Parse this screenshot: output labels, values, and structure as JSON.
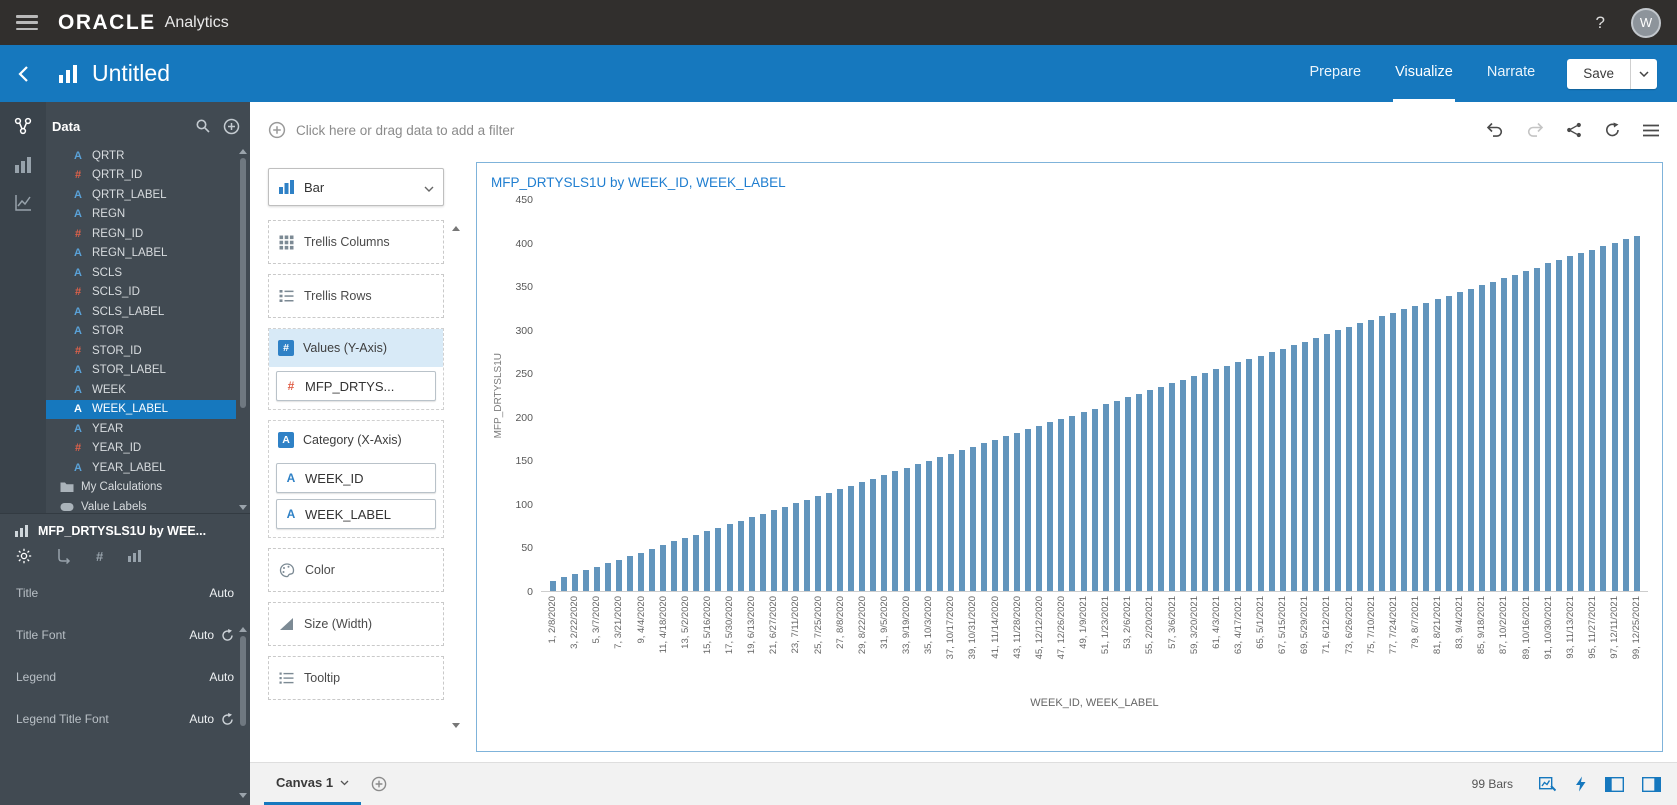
{
  "topbar": {
    "brand": "ORACLE",
    "product": "Analytics",
    "help_label": "?",
    "avatar_initial": "W"
  },
  "header": {
    "title": "Untitled",
    "nav": {
      "prepare": "Prepare",
      "visualize": "Visualize",
      "narrate": "Narrate"
    },
    "save_label": "Save"
  },
  "sidebar": {
    "panel_title": "Data",
    "fields": [
      {
        "label": "QRTR",
        "type": "attr"
      },
      {
        "label": "QRTR_ID",
        "type": "measure"
      },
      {
        "label": "QRTR_LABEL",
        "type": "attr"
      },
      {
        "label": "REGN",
        "type": "attr"
      },
      {
        "label": "REGN_ID",
        "type": "measure"
      },
      {
        "label": "REGN_LABEL",
        "type": "attr"
      },
      {
        "label": "SCLS",
        "type": "attr"
      },
      {
        "label": "SCLS_ID",
        "type": "measure"
      },
      {
        "label": "SCLS_LABEL",
        "type": "attr"
      },
      {
        "label": "STOR",
        "type": "attr"
      },
      {
        "label": "STOR_ID",
        "type": "measure"
      },
      {
        "label": "STOR_LABEL",
        "type": "attr"
      },
      {
        "label": "WEEK",
        "type": "attr"
      },
      {
        "label": "WEEK_LABEL",
        "type": "attr",
        "selected": true
      },
      {
        "label": "YEAR",
        "type": "attr"
      },
      {
        "label": "YEAR_ID",
        "type": "measure"
      },
      {
        "label": "YEAR_LABEL",
        "type": "attr"
      }
    ],
    "my_calculations_label": "My Calculations",
    "value_labels_label": "Value Labels",
    "viz_title": "MFP_DRTYSLS1U by WEE...",
    "properties": [
      {
        "label": "Title",
        "value": "Auto",
        "refresh": false
      },
      {
        "label": "Title Font",
        "value": "Auto",
        "refresh": true
      },
      {
        "label": "Legend",
        "value": "Auto",
        "refresh": false
      },
      {
        "label": "Legend Title Font",
        "value": "Auto",
        "refresh": true
      }
    ]
  },
  "filter_bar": {
    "prompt": "Click here or drag data to add a filter"
  },
  "grammar": {
    "chart_type_label": "Bar",
    "trellis_columns_label": "Trellis Columns",
    "trellis_rows_label": "Trellis Rows",
    "values_label": "Values (Y-Axis)",
    "values_pill": "MFP_DRTYS...",
    "category_label": "Category (X-Axis)",
    "category_pills": [
      "WEEK_ID",
      "WEEK_LABEL"
    ],
    "color_label": "Color",
    "size_label": "Size (Width)",
    "tooltip_label": "Tooltip"
  },
  "chart_data": {
    "type": "bar",
    "title": "MFP_DRTYSLS1U by WEEK_ID, WEEK_LABEL",
    "ylabel": "MFP_DRTYSLS1U",
    "xlabel": "WEEK_ID, WEEK_LABEL",
    "ylim": [
      0,
      450
    ],
    "yticks": [
      0,
      50,
      100,
      150,
      200,
      250,
      300,
      350,
      400,
      450
    ],
    "bar_color": "#6295bd",
    "grid": false,
    "label_every": 2,
    "x_tick_labels": [
      "1, 2/8/2020",
      "3, 2/22/2020",
      "5, 3/7/2020",
      "7, 3/21/2020",
      "9, 4/4/2020",
      "11, 4/18/2020",
      "13, 5/2/2020",
      "15, 5/16/2020",
      "17, 5/30/2020",
      "19, 6/13/2020",
      "21, 6/27/2020",
      "23, 7/11/2020",
      "25, 7/25/2020",
      "27, 8/8/2020",
      "29, 8/22/2020",
      "31, 9/5/2020",
      "33, 9/19/2020",
      "35, 10/3/2020",
      "37, 10/17/2020",
      "39, 10/31/2020",
      "41, 11/14/2020",
      "43, 11/28/2020",
      "45, 12/12/2020",
      "47, 12/26/2020",
      "49, 1/9/2021",
      "51, 1/23/2021",
      "53, 2/6/2021",
      "55, 2/20/2021",
      "57, 3/6/2021",
      "59, 3/20/2021",
      "61, 4/3/2021",
      "63, 4/17/2021",
      "65, 5/1/2021",
      "67, 5/15/2021",
      "69, 5/29/2021",
      "71, 6/12/2021",
      "73, 6/26/2021",
      "75, 7/10/2021",
      "77, 7/24/2021",
      "79, 8/7/2021",
      "81, 8/21/2021",
      "83, 9/4/2021",
      "85, 9/18/2021",
      "87, 10/2/2021",
      "89, 10/16/2021",
      "91, 10/30/2021",
      "93, 11/13/2021",
      "95, 11/27/2021",
      "97, 12/11/2021",
      "99, 12/25/2021"
    ],
    "values": [
      12,
      16,
      20,
      24,
      28,
      32,
      36,
      40,
      44,
      48,
      53,
      57,
      61,
      65,
      69,
      73,
      77,
      81,
      85,
      89,
      93,
      97,
      101,
      105,
      109,
      113,
      117,
      121,
      125,
      129,
      134,
      138,
      142,
      146,
      150,
      154,
      158,
      162,
      166,
      170,
      174,
      178,
      182,
      186,
      190,
      194,
      198,
      202,
      206,
      210,
      215,
      219,
      223,
      227,
      231,
      235,
      239,
      243,
      247,
      251,
      255,
      259,
      263,
      267,
      271,
      275,
      279,
      283,
      287,
      291,
      296,
      300,
      304,
      308,
      312,
      316,
      320,
      324,
      328,
      332,
      336,
      340,
      344,
      348,
      352,
      356,
      360,
      364,
      368,
      372,
      377,
      381,
      385,
      389,
      393,
      397,
      401,
      405,
      409
    ]
  },
  "canvas_bar": {
    "tab_label": "Canvas 1",
    "status": "99 Bars"
  }
}
